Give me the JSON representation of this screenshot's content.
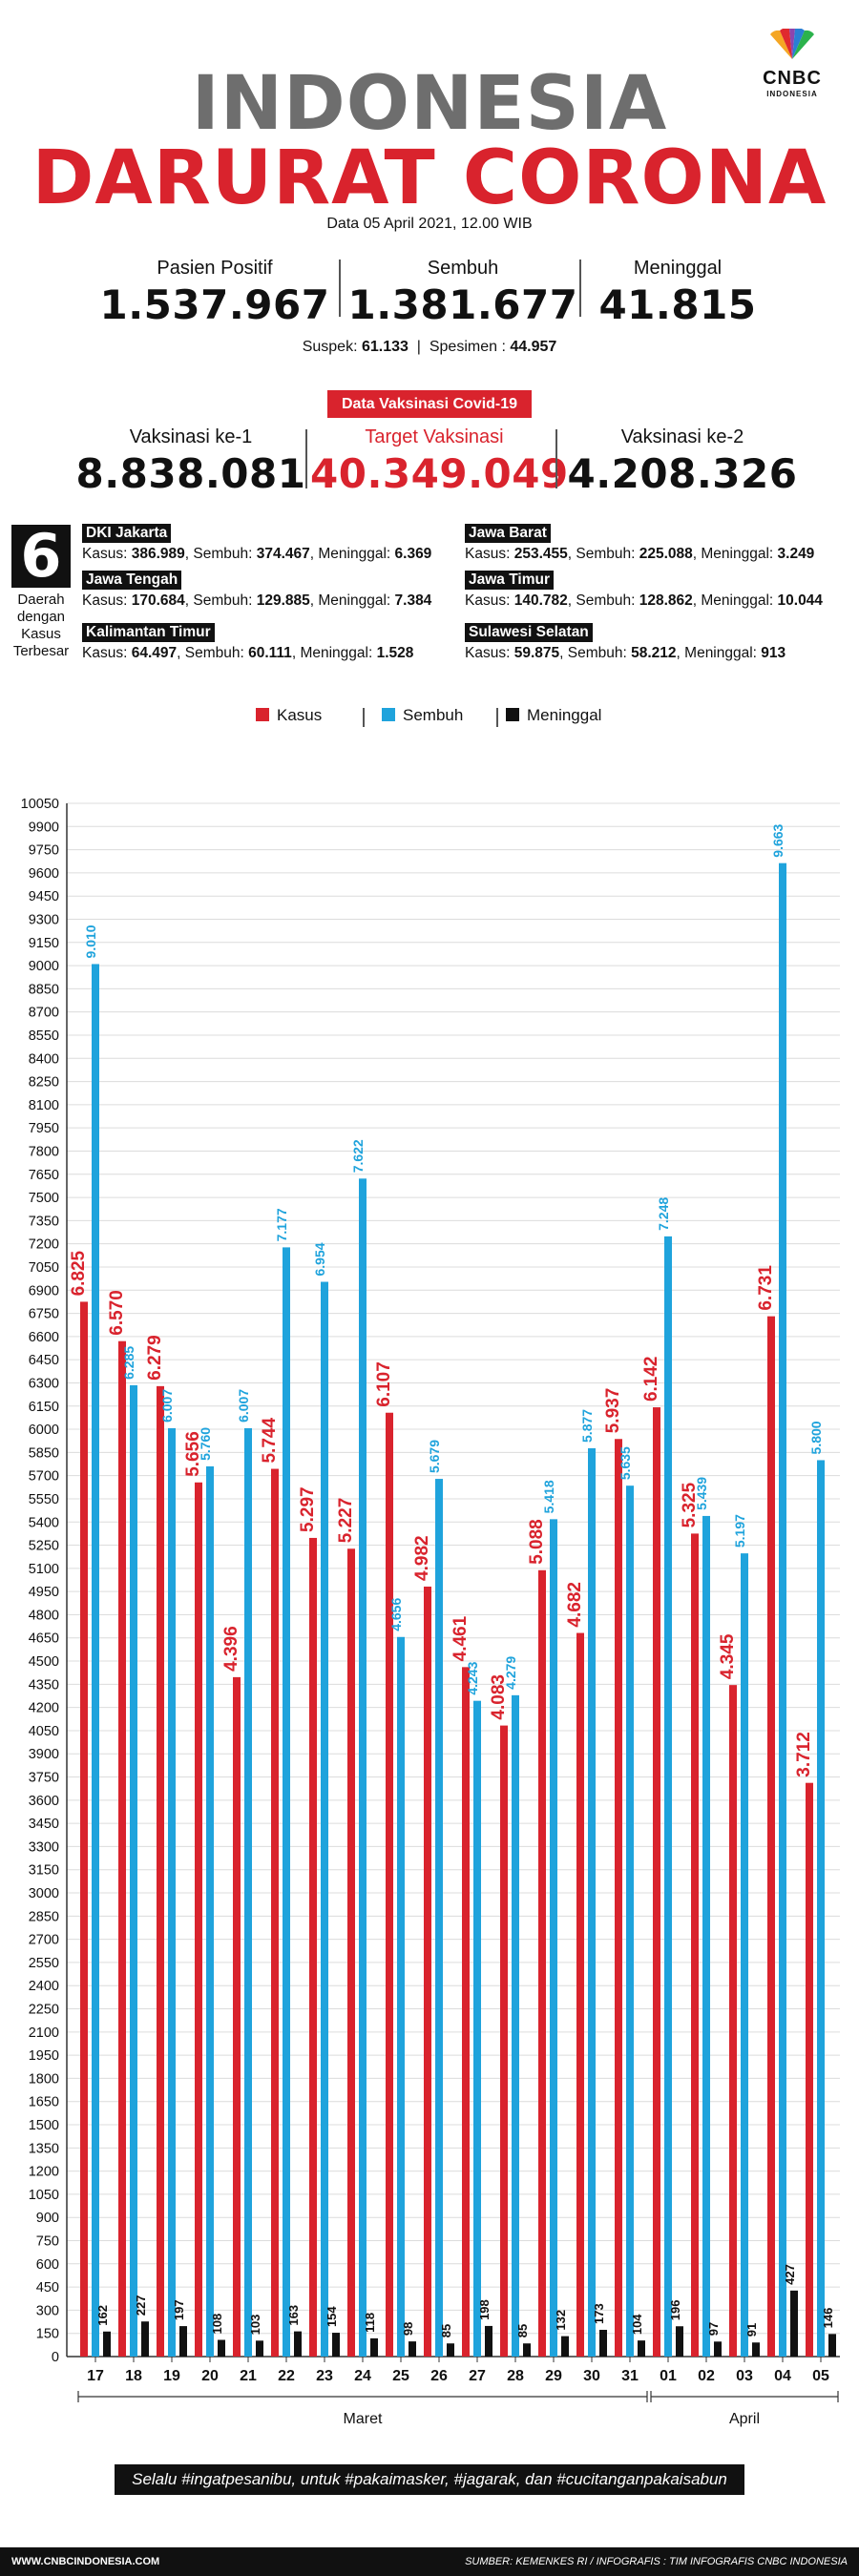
{
  "brand": {
    "name": "CNBC",
    "sub": "INDONESIA"
  },
  "title": {
    "line1": "INDONESIA",
    "line2": "DARURAT CORONA"
  },
  "date": "Data 05 April 2021, 12.00 WIB",
  "stats": [
    {
      "label": "Pasien Positif",
      "value": "1.537.967"
    },
    {
      "label": "Sembuh",
      "value": "1.381.677"
    },
    {
      "label": "Meninggal",
      "value": "41.815"
    }
  ],
  "suspek": {
    "label1": "Suspek:",
    "value1": "61.133",
    "sep": "|",
    "label2": "Spesimen :",
    "value2": "44.957"
  },
  "vaccine": {
    "badge": "Data Vaksinasi Covid-19",
    "items": [
      {
        "label": "Vaksinasi ke-1",
        "value": "8.838.081"
      },
      {
        "label": "Target Vaksinasi",
        "value": "40.349.049"
      },
      {
        "label": "Vaksinasi ke-2",
        "value": "4.208.326"
      }
    ]
  },
  "regions_header": {
    "number": "6",
    "text": "Daerah dengan Kasus Terbesar"
  },
  "regions": [
    {
      "name": "DKI Jakarta",
      "kasus": "386.989",
      "sembuh": "374.467",
      "meninggal": "6.369"
    },
    {
      "name": "Jawa Barat",
      "kasus": "253.455",
      "sembuh": "225.088",
      "meninggal": "3.249"
    },
    {
      "name": "Jawa Tengah",
      "kasus": "170.684",
      "sembuh": "129.885",
      "meninggal": "7.384"
    },
    {
      "name": "Jawa Timur",
      "kasus": "140.782",
      "sembuh": "128.862",
      "meninggal": "10.044"
    },
    {
      "name": "Kalimantan Timur",
      "kasus": "64.497",
      "sembuh": "60.111",
      "meninggal": "1.528"
    },
    {
      "name": "Sulawesi Selatan",
      "kasus": "59.875",
      "sembuh": "58.212",
      "meninggal": "913"
    }
  ],
  "region_labels": {
    "kasus": "Kasus:",
    "sembuh": "Sembuh:",
    "meninggal": "Meninggal:"
  },
  "legend": [
    {
      "name": "Kasus",
      "color": "#d9232d"
    },
    {
      "name": "Sembuh",
      "color": "#1fa3dc"
    },
    {
      "name": "Meninggal",
      "color": "#111111"
    }
  ],
  "chart_data": {
    "type": "bar",
    "title": "",
    "xlabel": "",
    "ylabel": "",
    "ylim": [
      0,
      10050
    ],
    "yticks": [
      0,
      150,
      300,
      450,
      600,
      750,
      900,
      1050,
      1200,
      1350,
      1500,
      1650,
      1800,
      1950,
      2100,
      2250,
      2400,
      2550,
      2700,
      2850,
      3000,
      3150,
      3300,
      3450,
      3600,
      3750,
      3900,
      4050,
      4200,
      4350,
      4500,
      4650,
      4800,
      4950,
      5100,
      5250,
      5400,
      5550,
      5700,
      5850,
      6000,
      6150,
      6300,
      6450,
      6600,
      6750,
      6900,
      7050,
      7200,
      7350,
      7500,
      7650,
      7800,
      7950,
      8100,
      8250,
      8400,
      8550,
      8700,
      8850,
      9000,
      9150,
      9300,
      9450,
      9600,
      9750,
      9900,
      10050
    ],
    "categories": [
      "17",
      "18",
      "19",
      "20",
      "21",
      "22",
      "23",
      "24",
      "25",
      "26",
      "27",
      "28",
      "29",
      "30",
      "31",
      "01",
      "02",
      "03",
      "04",
      "05"
    ],
    "groups": [
      {
        "label": "Maret",
        "from": 0,
        "to": 14
      },
      {
        "label": "April",
        "from": 15,
        "to": 19
      }
    ],
    "series": [
      {
        "name": "Kasus",
        "color": "#d9232d",
        "values": [
          6825,
          6570,
          6279,
          5656,
          4396,
          5744,
          5297,
          5227,
          6107,
          4982,
          4461,
          4083,
          5088,
          4682,
          5937,
          6142,
          5325,
          4345,
          6731,
          3712
        ],
        "labels": [
          "6.825",
          "6.570",
          "6.279",
          "5.656",
          "4.396",
          "5.744",
          "5.297",
          "5.227",
          "6.107",
          "4.982",
          "4.461",
          "4.083",
          "5.088",
          "4.682",
          "5.937",
          "6.142",
          "5.325",
          "4.345",
          "6.731",
          "3.712"
        ]
      },
      {
        "name": "Sembuh",
        "color": "#1fa3dc",
        "values": [
          9010,
          6285,
          6007,
          5760,
          6007,
          7177,
          6954,
          7622,
          4656,
          5679,
          4243,
          4279,
          5418,
          5877,
          5635,
          7248,
          5439,
          5197,
          9663,
          5800
        ],
        "labels": [
          "9.010",
          "6.285",
          "6.007",
          "5.760",
          "6.007",
          "7.177",
          "6.954",
          "7.622",
          "4.656",
          "5.679",
          "4.243",
          "4.279",
          "5.418",
          "5.877",
          "5.635",
          "7.248",
          "5.439",
          "5.197",
          "9.663",
          "5.800"
        ]
      },
      {
        "name": "Meninggal",
        "color": "#111111",
        "values": [
          162,
          227,
          197,
          108,
          103,
          163,
          154,
          118,
          98,
          85,
          198,
          85,
          132,
          173,
          104,
          196,
          97,
          91,
          427,
          146
        ],
        "labels": [
          "162",
          "227",
          "197",
          "108",
          "103",
          "163",
          "154",
          "118",
          "98",
          "85",
          "198",
          "85",
          "132",
          "173",
          "104",
          "196",
          "97",
          "91",
          "427",
          "146"
        ]
      }
    ]
  },
  "footer": {
    "slogan": "Selalu #ingatpesanibu, untuk #pakaimasker, #jagarak, dan #cucitanganpakaisabun",
    "site": "WWW.CNBCINDONESIA.COM",
    "source": "SUMBER: KEMENKES RI / INFOGRAFIS : TIM INFOGRAFIS CNBC INDONESIA"
  }
}
